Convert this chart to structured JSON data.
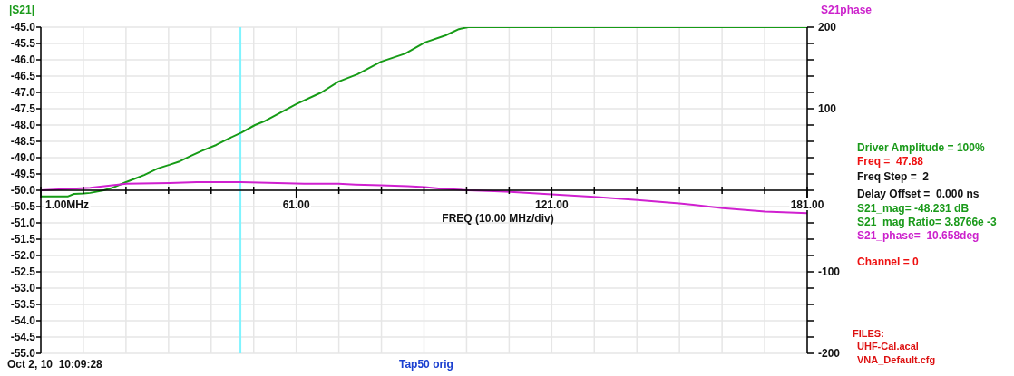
{
  "chart_data": {
    "type": "line",
    "ylabel": "|S21|",
    "y2label": "S21phase",
    "xlabel": "FREQ (10.00 MHz/div)",
    "xlim": [
      1,
      181
    ],
    "ylim": [
      -55,
      -45
    ],
    "y2lim": [
      -200,
      200
    ],
    "xticks": [
      {
        "value": 1,
        "label": "1.00MHz"
      },
      {
        "value": 11,
        "label": null
      },
      {
        "value": 21,
        "label": null
      },
      {
        "value": 31,
        "label": null
      },
      {
        "value": 41,
        "label": null
      },
      {
        "value": 51,
        "label": null
      },
      {
        "value": 61,
        "label": "61.00"
      },
      {
        "value": 71,
        "label": null
      },
      {
        "value": 81,
        "label": null
      },
      {
        "value": 91,
        "label": null
      },
      {
        "value": 101,
        "label": null
      },
      {
        "value": 111,
        "label": null
      },
      {
        "value": 121,
        "label": "121.00"
      },
      {
        "value": 131,
        "label": null
      },
      {
        "value": 141,
        "label": null
      },
      {
        "value": 151,
        "label": null
      },
      {
        "value": 161,
        "label": null
      },
      {
        "value": 171,
        "label": null
      },
      {
        "value": 181,
        "label": "181.00"
      }
    ],
    "yticks": [
      {
        "value": -45,
        "label": "-45.0"
      },
      -45.5,
      {
        "value": -46,
        "label": "-46.0"
      },
      -46.5,
      {
        "value": -47,
        "label": "-47.0"
      },
      -47.5,
      {
        "value": -48,
        "label": "-48.0"
      },
      -48.5,
      {
        "value": -49,
        "label": "-49.0"
      },
      -49.5,
      {
        "value": -50,
        "label": "-50.0"
      },
      -50.5,
      {
        "value": -51,
        "label": "-51.0"
      },
      -51.5,
      {
        "value": -52,
        "label": "-52.0"
      },
      -52.5,
      {
        "value": -53,
        "label": "-53.0"
      },
      -53.5,
      {
        "value": -54,
        "label": "-54.0"
      },
      -54.5,
      {
        "value": -55,
        "label": "-55.0"
      }
    ],
    "y2ticks": [
      200,
      {
        "value": 180,
        "label": null
      },
      {
        "value": 160,
        "label": null
      },
      {
        "value": 140,
        "label": null
      },
      {
        "value": 120,
        "label": null
      },
      100,
      {
        "value": 80,
        "label": null
      },
      {
        "value": 60,
        "label": null
      },
      {
        "value": 40,
        "label": null
      },
      {
        "value": 20,
        "label": null
      },
      {
        "value": 0,
        "label": null
      },
      {
        "value": -20,
        "label": null
      },
      {
        "value": -40,
        "label": null
      },
      {
        "value": -60,
        "label": null
      },
      {
        "value": -80,
        "label": null
      },
      -100,
      {
        "value": -120,
        "label": null
      },
      {
        "value": -140,
        "label": null
      },
      {
        "value": -160,
        "label": null
      },
      {
        "value": -180,
        "label": null
      },
      -200
    ],
    "grid": true,
    "ref_lines": [
      {
        "axis": "x",
        "value": 47.88,
        "color": "#80f4ff"
      }
    ],
    "series": [
      {
        "color": "#169b16",
        "axis": "y",
        "x": [
          1,
          7.3,
          8.8,
          11.1,
          12.6,
          15.8,
          17.9,
          20.6,
          23.2,
          25.3,
          28.5,
          31.2,
          33.7,
          36.3,
          39.0,
          42.2,
          44.7,
          48.1,
          51.3,
          53.4,
          61.0,
          66.9,
          70.9,
          75.4,
          80.9,
          86.6,
          91.2,
          96.1,
          99.2,
          101.4,
          181
        ],
        "values": [
          -50.19,
          -50.19,
          -50.11,
          -50.1,
          -50.08,
          -50.0,
          -49.92,
          -49.77,
          -49.64,
          -49.53,
          -49.33,
          -49.22,
          -49.11,
          -48.94,
          -48.78,
          -48.61,
          -48.44,
          -48.23,
          -48.0,
          -47.89,
          -47.36,
          -47.0,
          -46.67,
          -46.44,
          -46.06,
          -45.81,
          -45.47,
          -45.25,
          -45.06,
          -45.0,
          -45.0
        ]
      },
      {
        "color": "#d020d0",
        "axis": "y2",
        "x": [
          1,
          12.6,
          21.1,
          31.2,
          37.6,
          48.1,
          62.9,
          70.9,
          74.9,
          80.9,
          87.2,
          91.2,
          95.0,
          101.4,
          107.5,
          111.3,
          121.0,
          130.9,
          141.1,
          151.0,
          161.2,
          171.1,
          181
        ],
        "values": [
          0,
          3,
          8,
          9,
          10,
          10,
          8,
          8,
          7,
          6,
          5,
          4,
          2,
          0,
          -1,
          -2,
          -5,
          -8,
          -12,
          -16,
          -22,
          -26,
          -28
        ]
      }
    ],
    "annotations": [
      "Driver Amplitude = 100%",
      "Freq =  47.88",
      "Freq Step =  2",
      "Delay Offset =  0.000 ns",
      "S21_mag= -48.231 dB",
      "S21_mag Ratio= 3.8766e -3",
      "S21_phase=  10.658deg",
      "Channel = 0",
      "FILES:",
      "UHF-Cal.acal",
      "VNA_Default.cfg",
      "Oct 2, 10  10:09:28",
      "Tap50 orig"
    ]
  }
}
